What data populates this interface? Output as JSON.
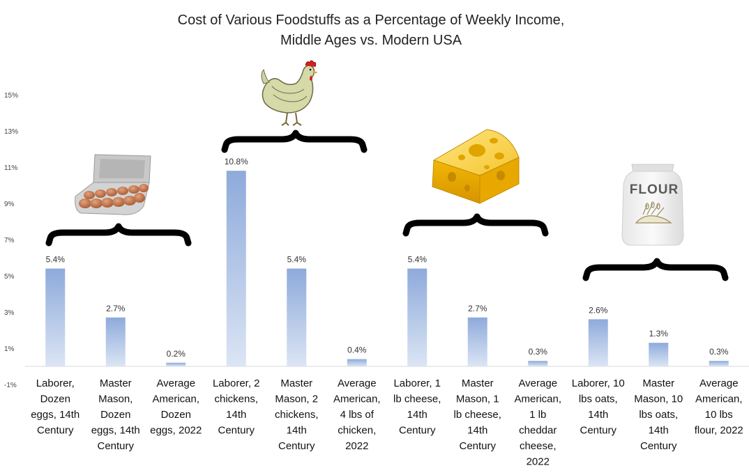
{
  "chart_data": {
    "type": "bar",
    "title": [
      "Cost of Various Foodstuffs as a Percentage of Weekly Income,",
      "Middle Ages vs. Modern USA"
    ],
    "xlabel": "",
    "ylabel": "",
    "ylim": [
      -1,
      15
    ],
    "yticks": [
      -1,
      1,
      3,
      5,
      7,
      9,
      11,
      13,
      15
    ],
    "ytick_labels": [
      "-1%",
      "1%",
      "3%",
      "5%",
      "7%",
      "9%",
      "11%",
      "13%",
      "15%"
    ],
    "grid": false,
    "bar_color": "#8eaadb",
    "categories": [
      [
        "Laborer,",
        "Dozen",
        "eggs, 14th",
        "Century"
      ],
      [
        "Master",
        "Mason,",
        "Dozen",
        "eggs, 14th",
        "Century"
      ],
      [
        "Average",
        "American,",
        "Dozen",
        "eggs, 2022"
      ],
      [
        "Laborer, 2",
        "chickens,",
        "14th",
        "Century"
      ],
      [
        "Master",
        "Mason, 2",
        "chickens,",
        "14th",
        "Century"
      ],
      [
        "Average",
        "American,",
        "4 lbs of",
        "chicken,",
        "2022"
      ],
      [
        "Laborer, 1",
        "lb cheese,",
        "14th",
        "Century"
      ],
      [
        "Master",
        "Mason, 1",
        "lb cheese,",
        "14th",
        "Century"
      ],
      [
        "Average",
        "American,",
        "1 lb",
        "cheddar",
        "cheese,",
        "2022"
      ],
      [
        "Laborer, 10",
        "lbs oats,",
        "14th",
        "Century"
      ],
      [
        "Master",
        "Mason, 10",
        "lbs oats,",
        "14th",
        "Century"
      ],
      [
        "Average",
        "American,",
        "10 lbs",
        "flour, 2022"
      ]
    ],
    "values": [
      5.4,
      2.7,
      0.2,
      10.8,
      5.4,
      0.4,
      5.4,
      2.7,
      0.3,
      2.6,
      1.3,
      0.3
    ],
    "data_labels": [
      "5.4%",
      "2.7%",
      "0.2%",
      "10.8%",
      "5.4%",
      "0.4%",
      "5.4%",
      "2.7%",
      "0.3%",
      "2.6%",
      "1.3%",
      "0.3%"
    ],
    "illustrations": [
      {
        "name": "egg-carton-icon",
        "group": "eggs"
      },
      {
        "name": "chicken-icon",
        "group": "chickens"
      },
      {
        "name": "cheese-icon",
        "group": "cheese"
      },
      {
        "name": "flour-bag-icon",
        "group": "oats-flour",
        "text": "FLOUR"
      }
    ]
  }
}
